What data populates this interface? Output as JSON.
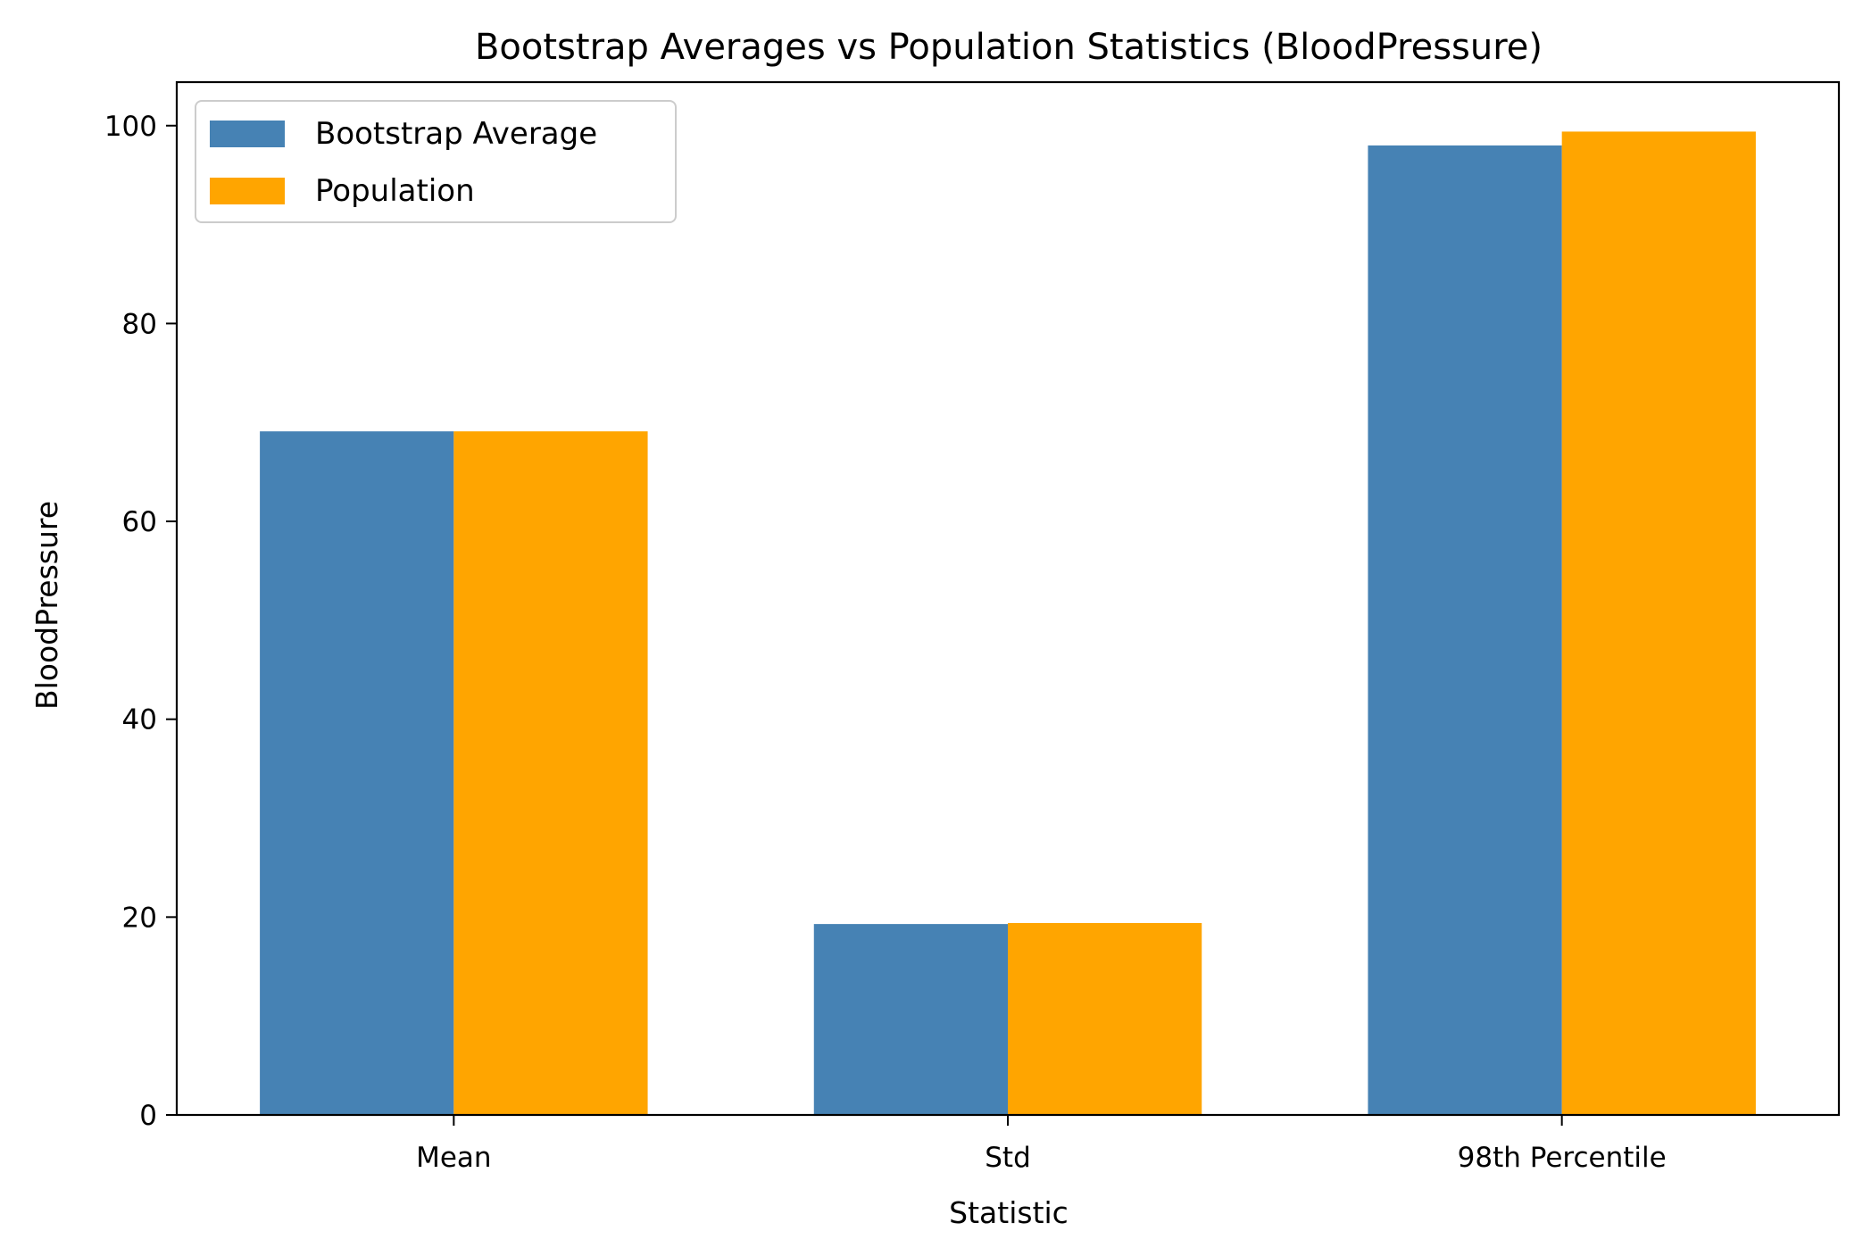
{
  "chart_data": {
    "type": "bar",
    "title": "Bootstrap Averages vs Population Statistics (BloodPressure)",
    "xlabel": "Statistic",
    "ylabel": "BloodPressure",
    "categories": [
      "Mean",
      "Std",
      "98th Percentile"
    ],
    "series": [
      {
        "name": "Bootstrap Average",
        "color": "#4682b4",
        "values": [
          69.1,
          19.3,
          98.0
        ]
      },
      {
        "name": "Population",
        "color": "#ffa500",
        "values": [
          69.1,
          19.4,
          99.4
        ]
      }
    ],
    "ylim": [
      0,
      104.4
    ],
    "yticks": [
      0,
      20,
      40,
      60,
      80,
      100
    ],
    "grid": false,
    "legend_position": "top-left"
  }
}
